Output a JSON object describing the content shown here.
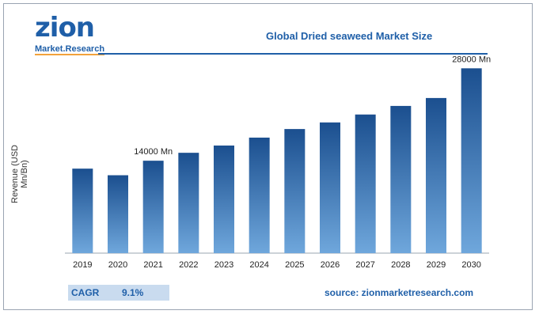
{
  "logo": {
    "main": "zion",
    "sub": "Market.Research"
  },
  "footer": {
    "cagr_label": "CAGR",
    "cagr_value": "9.1%",
    "source": "source: zionmarketresearch.com"
  },
  "colors": {
    "brand": "#1f5fa8",
    "bar_top": "#1b4f8f",
    "bar_bottom": "#6fa7dc",
    "cagr_bg": "#c9dbef"
  },
  "chart_data": {
    "type": "bar",
    "title": "Global Dried seaweed Market Size",
    "ylabel": "Revenue (USD Mn/Bn)",
    "xlabel": "",
    "categories": [
      "2019",
      "2020",
      "2021",
      "2022",
      "2023",
      "2024",
      "2025",
      "2026",
      "2027",
      "2028",
      "2029",
      "2030"
    ],
    "values": [
      12800,
      11800,
      14000,
      15200,
      16300,
      17500,
      18800,
      19800,
      21000,
      22300,
      23500,
      28000
    ],
    "ylim": [
      0,
      29000
    ],
    "annotations": [
      {
        "category": "2021",
        "text": "14000 Mn"
      },
      {
        "category": "2030",
        "text": "28000 Mn"
      }
    ],
    "grid": false,
    "legend": "none"
  }
}
